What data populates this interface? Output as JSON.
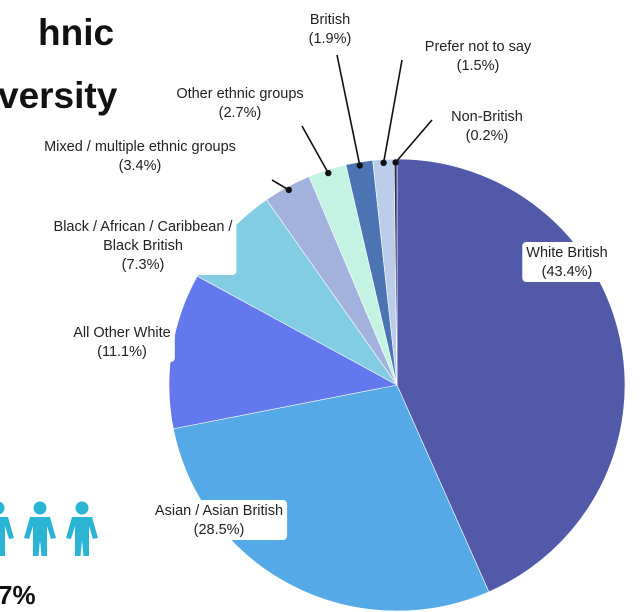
{
  "title": {
    "line1": "hnic",
    "line2": "versity"
  },
  "footer_text": "7%",
  "people_icon_color": "#2bb5d4",
  "chart_data": {
    "type": "pie",
    "title": "",
    "start_angle_deg": 0,
    "direction": "clockwise",
    "slices": [
      {
        "label": [
          "White British",
          "(43.4%)"
        ],
        "value": 43.4,
        "color": "#5159a8"
      },
      {
        "label": [
          "Asian / Asian British",
          "(28.5%)"
        ],
        "value": 28.5,
        "color": "#54a9e6"
      },
      {
        "label": [
          "All Other White",
          "(11.1%)"
        ],
        "value": 11.1,
        "color": "#6478ee"
      },
      {
        "label": [
          "Black / African / Caribbean /",
          "Black British",
          "(7.3%)"
        ],
        "value": 7.3,
        "color": "#82cde4"
      },
      {
        "label": [
          "Mixed / multiple ethnic groups",
          "(3.4%)"
        ],
        "value": 3.4,
        "color": "#a3b2dc"
      },
      {
        "label": [
          "Other ethnic groups",
          "(2.7%)"
        ],
        "value": 2.7,
        "color": "#c4f2e3"
      },
      {
        "label": [
          "British",
          "(1.9%)"
        ],
        "value": 1.9,
        "color": "#4c74b2"
      },
      {
        "label": [
          "Prefer not to say",
          "(1.5%)"
        ],
        "value": 1.5,
        "color": "#bccde9"
      },
      {
        "label": [
          "Non-British",
          "(0.2%)"
        ],
        "value": 0.2,
        "color": "#262e62"
      }
    ]
  }
}
